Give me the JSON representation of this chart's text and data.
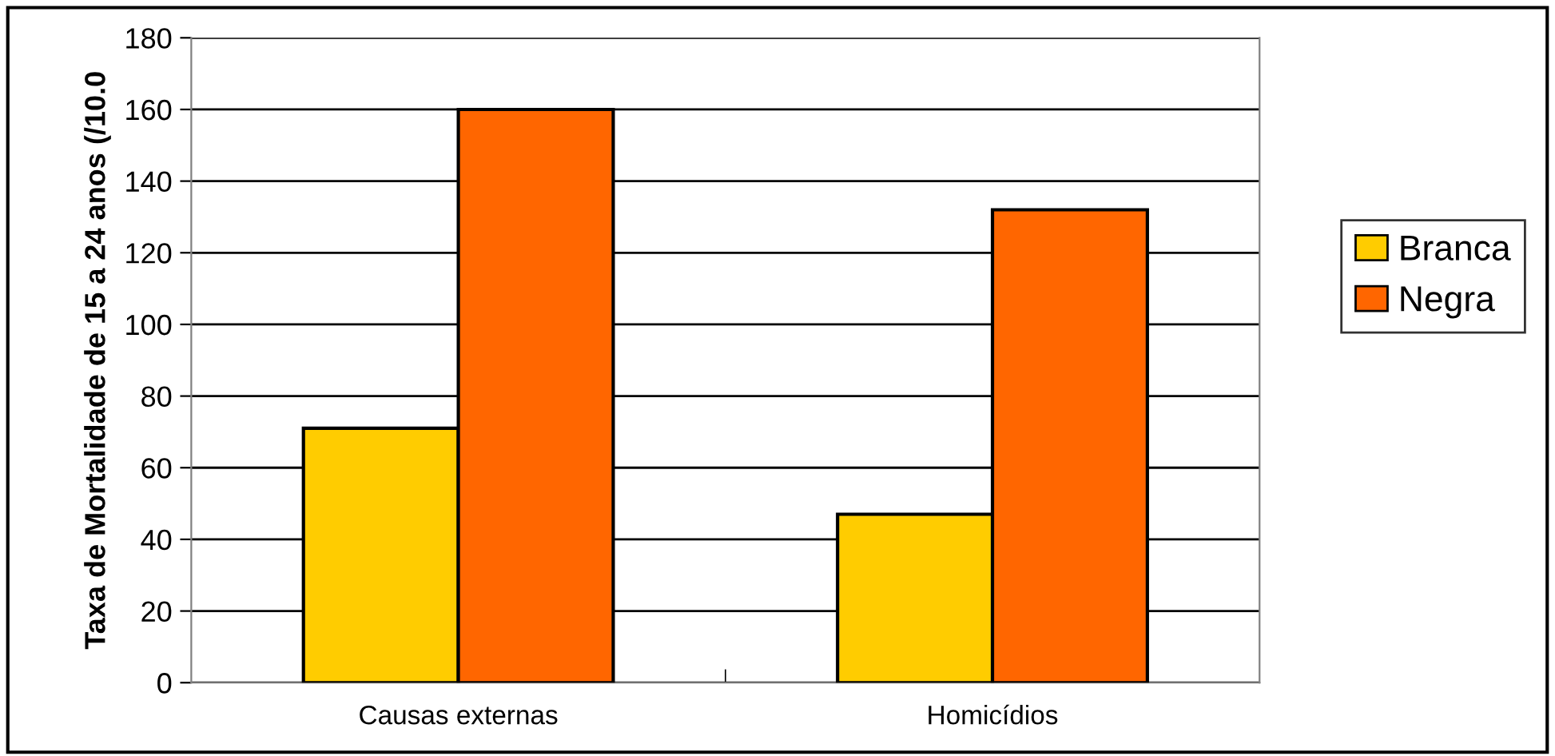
{
  "chart_data": {
    "type": "bar",
    "ylabel": "Taxa de Mortalidade de 15 a 24 anos (/10.0",
    "categories": [
      "Causas externas",
      "Homicídios"
    ],
    "series": [
      {
        "name": "Branca",
        "color": "#ffcc00",
        "values": [
          71,
          47
        ]
      },
      {
        "name": "Negra",
        "color": "#ff6600",
        "values": [
          160,
          132
        ]
      }
    ],
    "ylim": [
      0,
      180
    ],
    "yticks": [
      0,
      20,
      40,
      60,
      80,
      100,
      120,
      140,
      160,
      180
    ],
    "grid": "y",
    "legend": "right"
  }
}
